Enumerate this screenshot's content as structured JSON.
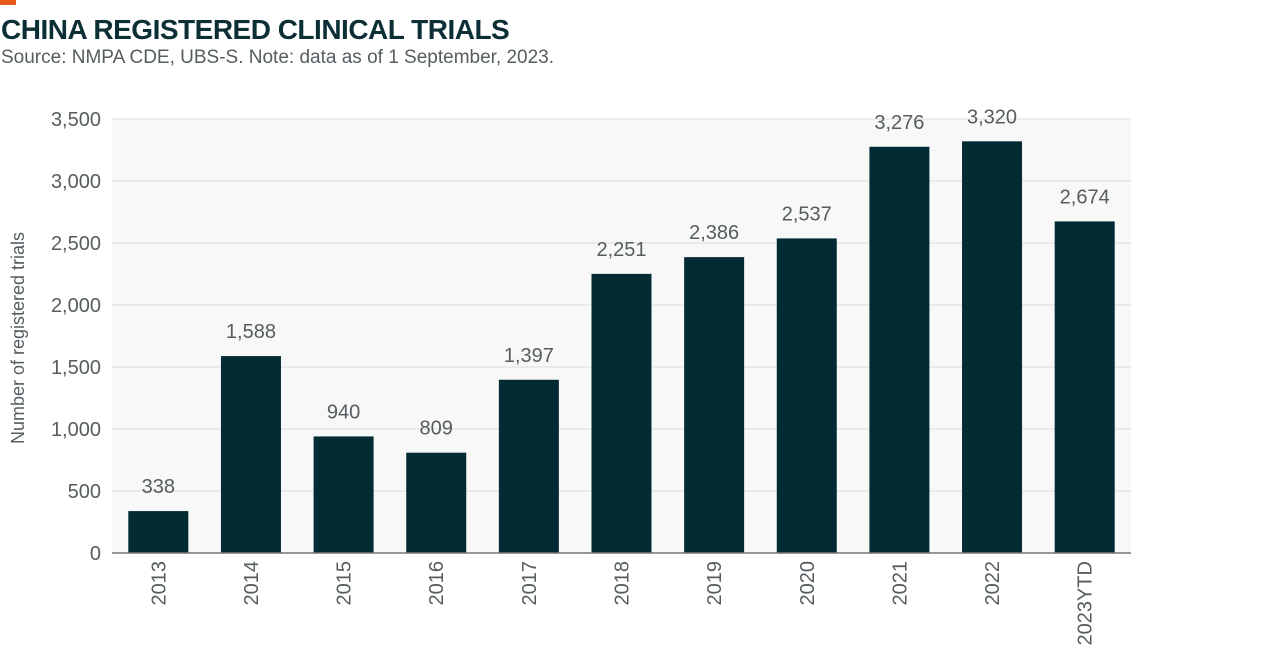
{
  "header": {
    "title": "CHINA REGISTERED CLINICAL TRIALS",
    "subtitle": "Source: NMPA CDE, UBS-S. Note: data as of 1 September, 2023."
  },
  "colors": {
    "bar": "#022b34",
    "accent": "#e8581c",
    "plot_bg": "#f7f8f7",
    "grid": "#dcdcdc"
  },
  "chart_data": {
    "type": "bar",
    "title": "CHINA REGISTERED CLINICAL TRIALS",
    "xlabel": "",
    "ylabel": "Number of registered trials",
    "categories": [
      "2013",
      "2014",
      "2015",
      "2016",
      "2017",
      "2018",
      "2019",
      "2020",
      "2021",
      "2022",
      "2023YTD"
    ],
    "values": [
      338,
      1588,
      940,
      809,
      1397,
      2251,
      2386,
      2537,
      3276,
      3320,
      2674
    ],
    "value_labels": [
      "338",
      "1,588",
      "940",
      "809",
      "1,397",
      "2,251",
      "2,386",
      "2,537",
      "3,276",
      "3,320",
      "2,674"
    ],
    "ylim": [
      0,
      3500
    ],
    "yticks": [
      0,
      500,
      1000,
      1500,
      2000,
      2500,
      3000,
      3500
    ],
    "ytick_labels": [
      "0",
      "500",
      "1,000",
      "1,500",
      "2,000",
      "2,500",
      "3,000",
      "3,500"
    ],
    "grid": true,
    "legend": "none"
  }
}
